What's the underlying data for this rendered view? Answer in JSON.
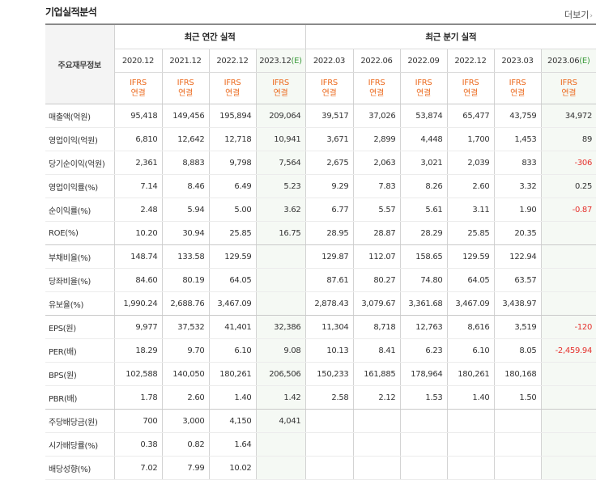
{
  "section": {
    "title": "기업실적분석",
    "more": "더보기"
  },
  "header": {
    "corner": "주요재무정보",
    "annual_group": "최근 연간 실적",
    "quarter_group": "최근 분기 실적",
    "periods": [
      "2020.12",
      "2021.12",
      "2022.12",
      "2023.12",
      "2022.03",
      "2022.06",
      "2022.09",
      "2022.12",
      "2023.03",
      "2023.06"
    ],
    "estimate_mark": "(E)",
    "standard_top": "IFRS",
    "standard_bottom": "연결"
  },
  "rows": [
    {
      "label": "매출액(억원)",
      "values": [
        "95,418",
        "149,456",
        "195,894",
        "209,064",
        "39,517",
        "37,026",
        "53,874",
        "65,477",
        "43,759",
        "34,972"
      ]
    },
    {
      "label": "영업이익(억원)",
      "values": [
        "6,810",
        "12,642",
        "12,718",
        "10,941",
        "3,671",
        "2,899",
        "4,448",
        "1,700",
        "1,453",
        "89"
      ]
    },
    {
      "label": "당기순이익(억원)",
      "values": [
        "2,361",
        "8,883",
        "9,798",
        "7,564",
        "2,675",
        "2,063",
        "3,021",
        "2,039",
        "833",
        "-306"
      ]
    },
    {
      "label": "영업이익률(%)",
      "values": [
        "7.14",
        "8.46",
        "6.49",
        "5.23",
        "9.29",
        "7.83",
        "8.26",
        "2.60",
        "3.32",
        "0.25"
      ]
    },
    {
      "label": "순이익률(%)",
      "values": [
        "2.48",
        "5.94",
        "5.00",
        "3.62",
        "6.77",
        "5.57",
        "5.61",
        "3.11",
        "1.90",
        "-0.87"
      ]
    },
    {
      "label": "ROE(%)",
      "values": [
        "10.20",
        "30.94",
        "25.85",
        "16.75",
        "28.95",
        "28.87",
        "28.29",
        "25.85",
        "20.35",
        ""
      ]
    },
    {
      "label": "부채비율(%)",
      "values": [
        "148.74",
        "133.58",
        "129.59",
        "",
        "129.87",
        "112.07",
        "158.65",
        "129.59",
        "122.94",
        ""
      ]
    },
    {
      "label": "당좌비율(%)",
      "values": [
        "84.60",
        "80.19",
        "64.05",
        "",
        "87.61",
        "80.27",
        "74.80",
        "64.05",
        "63.57",
        ""
      ]
    },
    {
      "label": "유보율(%)",
      "values": [
        "1,990.24",
        "2,688.76",
        "3,467.09",
        "",
        "2,878.43",
        "3,079.67",
        "3,361.68",
        "3,467.09",
        "3,438.97",
        ""
      ]
    },
    {
      "label": "EPS(원)",
      "values": [
        "9,977",
        "37,532",
        "41,401",
        "32,386",
        "11,304",
        "8,718",
        "12,763",
        "8,616",
        "3,519",
        "-120"
      ]
    },
    {
      "label": "PER(배)",
      "values": [
        "18.29",
        "9.70",
        "6.10",
        "9.08",
        "10.13",
        "8.41",
        "6.23",
        "6.10",
        "8.05",
        "-2,459.94"
      ]
    },
    {
      "label": "BPS(원)",
      "values": [
        "102,588",
        "140,050",
        "180,261",
        "206,506",
        "150,233",
        "161,885",
        "178,964",
        "180,261",
        "180,168",
        ""
      ]
    },
    {
      "label": "PBR(배)",
      "values": [
        "1.78",
        "2.60",
        "1.40",
        "1.42",
        "2.58",
        "2.12",
        "1.53",
        "1.40",
        "1.50",
        ""
      ]
    },
    {
      "label": "주당배당금(원)",
      "values": [
        "700",
        "3,000",
        "4,150",
        "4,041",
        "",
        "",
        "",
        "",
        "",
        ""
      ]
    },
    {
      "label": "시가배당률(%)",
      "values": [
        "0.38",
        "0.82",
        "1.64",
        "",
        "",
        "",
        "",
        "",
        "",
        ""
      ]
    },
    {
      "label": "배당성향(%)",
      "values": [
        "7.02",
        "7.99",
        "10.02",
        "",
        "",
        "",
        "",
        "",
        "",
        ""
      ]
    }
  ],
  "colors": {
    "accent_orange": "#ec6b20",
    "negative_red": "#e5322d",
    "estimate_bg": "#f5f9f4",
    "estimate_mark": "#3a9a3a"
  }
}
